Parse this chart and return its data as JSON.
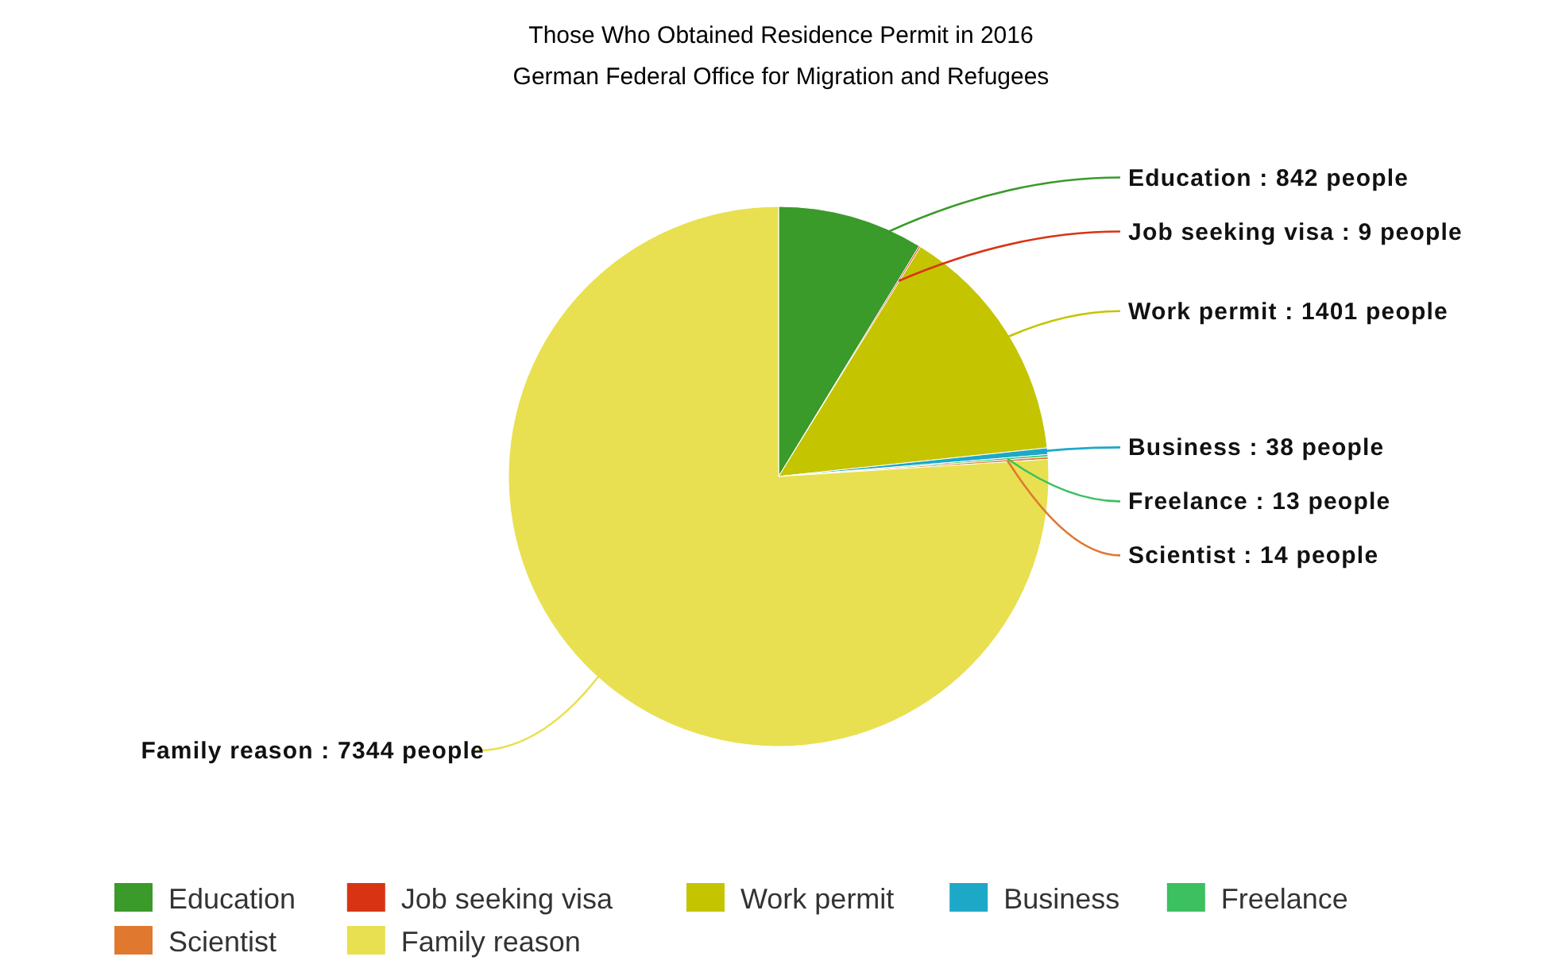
{
  "chart_data": {
    "type": "pie",
    "title": "Those Who Obtained Residence Permit in 2016",
    "subtitle": "German Federal Office for Migration and Refugees",
    "categories": [
      "Education",
      "Job seeking visa",
      "Work permit",
      "Business",
      "Freelance",
      "Scientist",
      "Family reason"
    ],
    "values": [
      842,
      9,
      1401,
      38,
      13,
      14,
      7344
    ],
    "colors": [
      "#3a9a2a",
      "#d83414",
      "#c4c400",
      "#1ea8c8",
      "#3cc060",
      "#e07830",
      "#e8e050"
    ],
    "value_labels": [
      "Education : 842 people",
      "Job seeking visa : 9 people",
      "Work permit : 1401 people",
      "Business : 38 people",
      "Freelance : 13 people",
      "Scientist : 14 people",
      "Family reason : 7344 people"
    ],
    "legend": "bottom"
  }
}
